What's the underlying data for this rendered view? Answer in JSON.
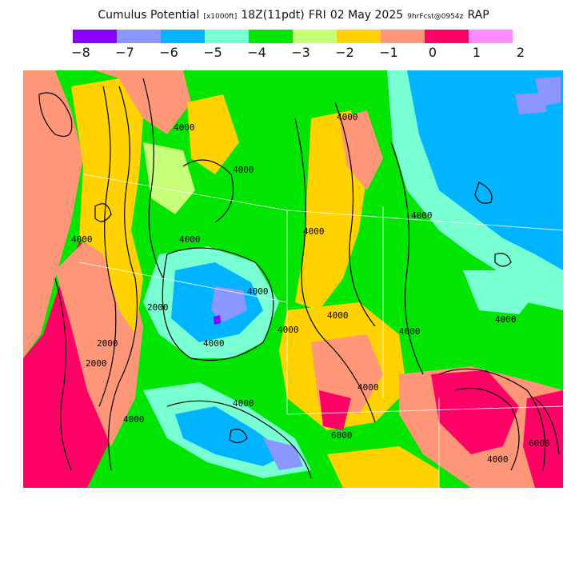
{
  "header": {
    "product": "Cumulus Potential",
    "units": "[x1000ft]",
    "valid": "18Z(11pdt)",
    "day": "FRI",
    "date": "02 May 2025",
    "run": "9hrFcst@0954z",
    "model": "RAP"
  },
  "legend": {
    "colors": [
      "#8c00ff",
      "#8c96ff",
      "#00b4ff",
      "#78ffd2",
      "#00e600",
      "#c8ff78",
      "#ffd200",
      "#ff9678",
      "#ff0064",
      "#ff8cff"
    ],
    "ticks": [
      "−8",
      "−7",
      "−6",
      "−5",
      "−4",
      "−3",
      "−2",
      "−1",
      "0",
      "1",
      "2"
    ]
  },
  "map": {
    "contour_labels": [
      "4000",
      "4000",
      "4000",
      "4000",
      "2000",
      "4000",
      "4000",
      "4000",
      "4000",
      "2000",
      "2000",
      "4000",
      "4000",
      "4000",
      "4000",
      "4000",
      "6000",
      "4000",
      "4000",
      "4000",
      "6000",
      "4000"
    ]
  }
}
